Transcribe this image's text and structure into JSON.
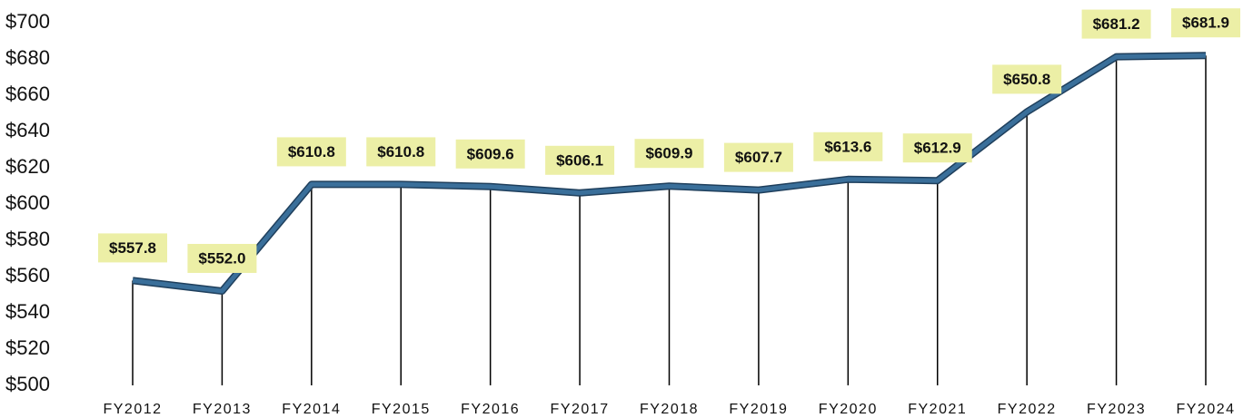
{
  "chart_data": {
    "type": "line",
    "categories": [
      "FY2012",
      "FY2013",
      "FY2014",
      "FY2015",
      "FY2016",
      "FY2017",
      "FY2018",
      "FY2019",
      "FY2020",
      "FY2021",
      "FY2022",
      "FY2023",
      "FY2024"
    ],
    "series": [
      {
        "color": "#3a6f9a",
        "values": [
          557.8,
          552.0,
          610.8,
          610.8,
          609.6,
          606.1,
          609.9,
          607.7,
          613.6,
          612.9,
          650.8,
          681.2,
          681.9
        ],
        "value_labels": [
          "$557.8",
          "$552.0",
          "$610.8",
          "$610.8",
          "$609.6",
          "$606.1",
          "$609.9",
          "$607.7",
          "$613.6",
          "$612.9",
          "$650.8",
          "$681.2",
          "$681.9"
        ]
      }
    ],
    "ylim": [
      500,
      700
    ],
    "yticks": [
      {
        "value": 500,
        "label": "$500"
      },
      {
        "value": 520,
        "label": "$520"
      },
      {
        "value": 540,
        "label": "$540"
      },
      {
        "value": 560,
        "label": "$560"
      },
      {
        "value": 580,
        "label": "$580"
      },
      {
        "value": 600,
        "label": "$600"
      },
      {
        "value": 620,
        "label": "$620"
      },
      {
        "value": 640,
        "label": "$640"
      },
      {
        "value": 660,
        "label": "$660"
      },
      {
        "value": 680,
        "label": "$680"
      },
      {
        "value": 700,
        "label": "$700"
      }
    ],
    "label_box_color": "#ecefa6",
    "drop_lines": true
  }
}
